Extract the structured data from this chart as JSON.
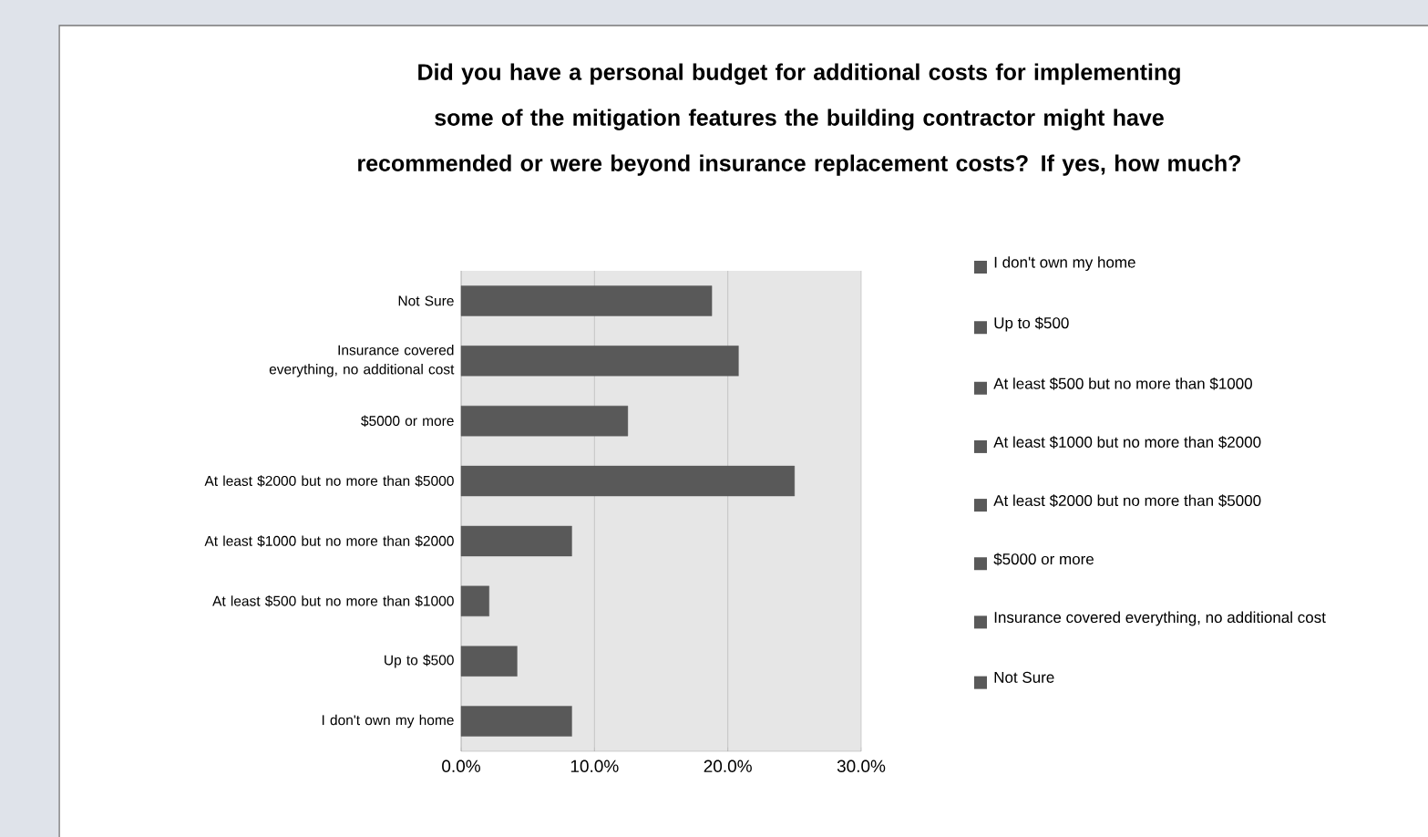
{
  "chart_data": {
    "type": "bar",
    "orientation": "horizontal",
    "title": "Did you have a personal budget for additional costs for implementing some of the mitigation features the building contractor might have recommended or were beyond insurance replacement costs? If yes, how much?",
    "categories": [
      "Not Sure",
      "Insurance covered everything, no additional cost",
      "$5000 or more",
      "At least $2000 but no more than $5000",
      "At least $1000 but no more than $2000",
      "At least $500 but no more than $1000",
      "Up to $500",
      "I don't own my home"
    ],
    "values": [
      18.8,
      20.8,
      12.5,
      25.0,
      8.3,
      2.1,
      4.2,
      8.3
    ],
    "colors": [
      "#595959",
      "#595959",
      "#595959",
      "#595959",
      "#595959",
      "#595959",
      "#595959",
      "#595959"
    ],
    "xlim": [
      0,
      30
    ],
    "xticks": [
      {
        "value": 0,
        "label": "0.0%"
      },
      {
        "value": 10,
        "label": "10.0%"
      },
      {
        "value": 20,
        "label": "20.0%"
      },
      {
        "value": 30,
        "label": "30.0%"
      }
    ],
    "grid": "x"
  }
}
